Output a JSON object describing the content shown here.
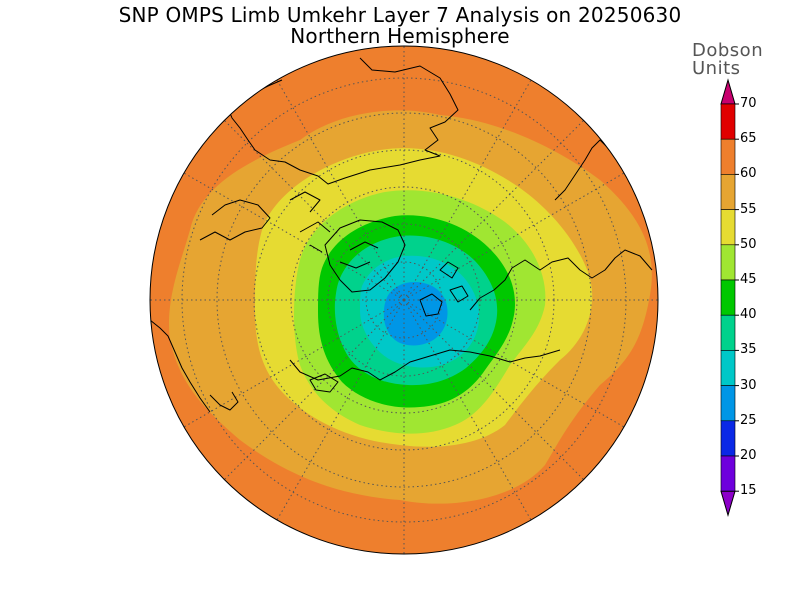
{
  "title": {
    "line1": "SNP OMPS Limb Umkehr Layer 7 Analysis on 20250630",
    "line2": "Northern Hemisphere"
  },
  "colorbar": {
    "units_line1": "Dobson",
    "units_line2": "Units",
    "ticks": [
      "70",
      "65",
      "60",
      "55",
      "50",
      "45",
      "40",
      "35",
      "30",
      "25",
      "20",
      "15"
    ],
    "band_colors": [
      "#c8006e",
      "#e00000",
      "#ee7f2d",
      "#e6a532",
      "#e6db32",
      "#a0e632",
      "#00c800",
      "#00d28c",
      "#00c8c8",
      "#0096e6",
      "#0a28e6",
      "#6e00dc",
      "#8c00c8"
    ]
  },
  "map": {
    "projection": "north-polar-stereographic",
    "hemisphere": "Northern Hemisphere",
    "field": "ozone column, layer 7",
    "units": "Dobson Units",
    "contour_levels": [
      15,
      20,
      25,
      30,
      35,
      40,
      45,
      50,
      55,
      60,
      65,
      70
    ],
    "minimum_near_pole": 25,
    "maximum_near_edge": 65,
    "graticule": "dotted"
  }
}
